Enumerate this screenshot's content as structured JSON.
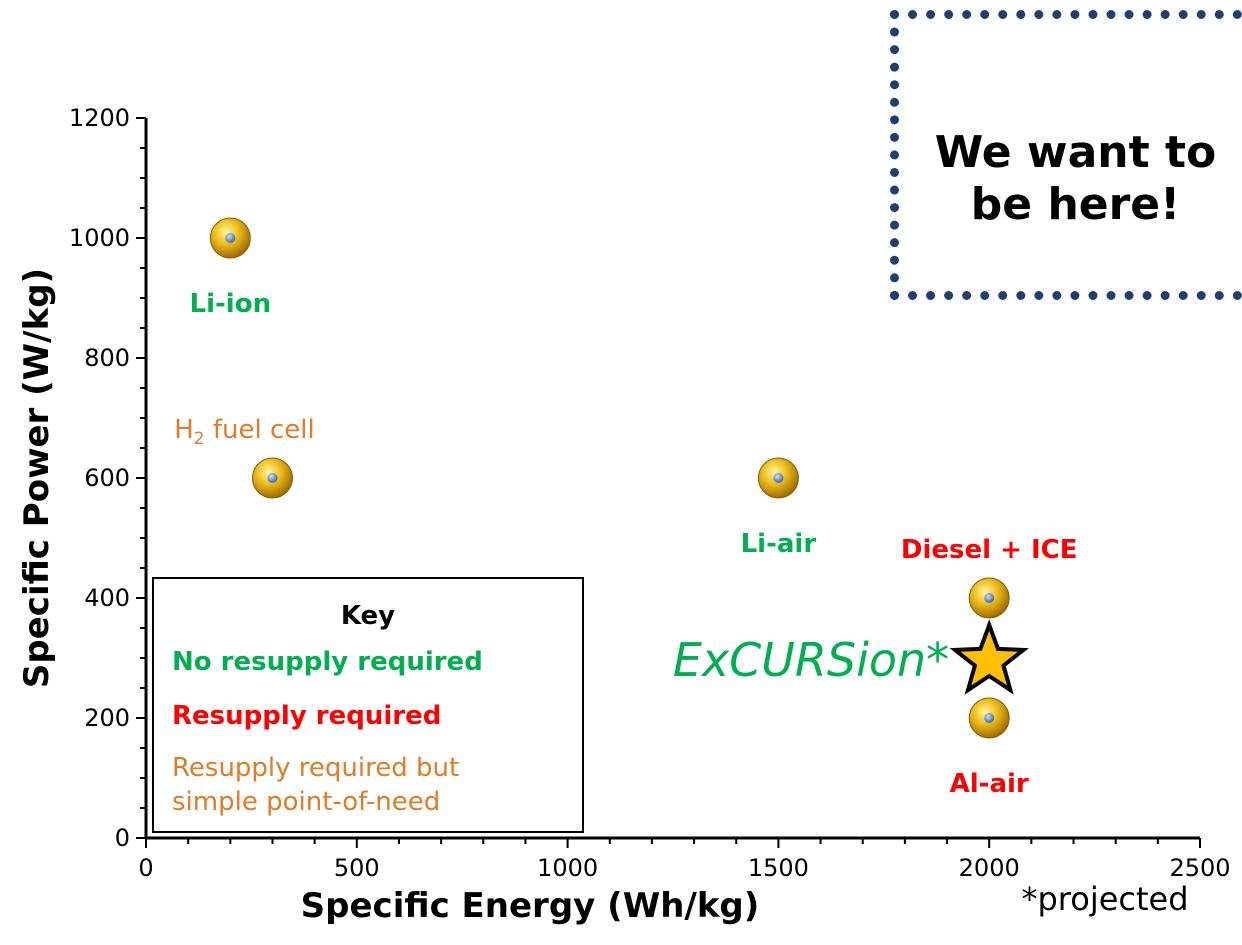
{
  "chart_data": {
    "type": "scatter",
    "xlabel": "Specific Energy (Wh/kg)",
    "ylabel": "Specific Power (W/kg)",
    "xlim": [
      0,
      2500
    ],
    "ylim": [
      0,
      1200
    ],
    "x_ticks": [
      0,
      500,
      1000,
      1500,
      2000,
      2500
    ],
    "y_ticks": [
      0,
      200,
      400,
      600,
      800,
      1000,
      1200
    ],
    "grid": false,
    "points": [
      {
        "label": "Li-ion",
        "x": 200,
        "y": 1000,
        "category": "no_resupply",
        "label_pos": "below"
      },
      {
        "label": "H2 fuel cell",
        "label_main": "H",
        "label_sub": "2",
        "label_rest": " fuel cell",
        "x": 300,
        "y": 600,
        "category": "simple_point_of_need",
        "label_pos": "above"
      },
      {
        "label": "Li-air",
        "x": 1500,
        "y": 600,
        "category": "no_resupply",
        "label_pos": "below"
      },
      {
        "label": "Diesel + ICE",
        "x": 2000,
        "y": 400,
        "category": "resupply",
        "label_pos": "above"
      },
      {
        "label": "Al-air",
        "x": 2000,
        "y": 200,
        "category": "resupply",
        "label_pos": "below"
      }
    ],
    "highlight": {
      "label": "ExCURSion*",
      "x": 2000,
      "y": 300,
      "marker": "star"
    },
    "footnote": "*projected",
    "callout": "We want to be here!",
    "legend": {
      "title": "Key",
      "placement": "bottom-left",
      "items": [
        {
          "key": "no_resupply",
          "label": "No resupply required"
        },
        {
          "key": "resupply",
          "label": "Resupply required"
        },
        {
          "key": "simple_point_of_need",
          "label": "Resupply required but simple point-of-need"
        }
      ]
    },
    "colors": {
      "no_resupply": "#00b050",
      "resupply": "#ff0000",
      "simple_point_of_need": "#e07b27",
      "callout_border": "#1f3f6e",
      "marker": "#d9a400",
      "star": "#ffc000"
    }
  }
}
